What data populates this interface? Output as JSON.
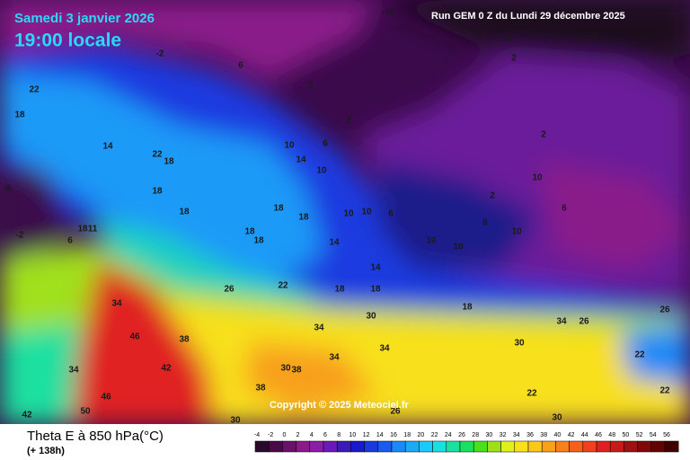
{
  "header": {
    "date": "Samedi 3 janvier 2026",
    "time": "19:00 locale",
    "run": "Run GEM 0 Z du Lundi 29 décembre 2025"
  },
  "copyright": "Copyright © 2025 Meteociel.fr",
  "footer": {
    "parameter": "Theta E à 850 hPa(°C)",
    "lead": "(+ 138h)"
  },
  "scale": {
    "values": [
      -4,
      -2,
      0,
      2,
      4,
      6,
      8,
      10,
      12,
      14,
      16,
      18,
      20,
      22,
      24,
      26,
      28,
      30,
      32,
      34,
      36,
      38,
      40,
      42,
      44,
      46,
      48,
      50,
      52,
      54,
      56
    ],
    "colors": [
      "#2a0a2a",
      "#4a0a4a",
      "#6a126a",
      "#8a1a8a",
      "#8a1ea8",
      "#6a1ab8",
      "#3a1ab8",
      "#1a1acc",
      "#1a3ae0",
      "#1a5af0",
      "#1a8af8",
      "#1aaaf8",
      "#1acaf8",
      "#1ae0e0",
      "#1ae0a0",
      "#1ae060",
      "#4ae01a",
      "#a0e01a",
      "#e0f01a",
      "#f8e01a",
      "#f8c81a",
      "#f8a01a",
      "#f8801a",
      "#f8601a",
      "#f04020",
      "#e02020",
      "#c81a1a",
      "#a01010",
      "#800808",
      "#600404",
      "#400000"
    ]
  },
  "contour_labels": [
    22,
    18,
    14,
    22,
    18,
    18,
    18,
    11,
    18,
    6,
    -2,
    -6,
    -2,
    6,
    2,
    2,
    6,
    10,
    14,
    10,
    18,
    18,
    18,
    18,
    14,
    10,
    10,
    6,
    10,
    10,
    6,
    10,
    2,
    2,
    10,
    6,
    2,
    -2,
    -10,
    -2,
    14,
    18,
    18,
    18,
    22,
    26,
    30,
    34,
    34,
    30,
    34,
    26,
    22,
    30,
    34,
    38,
    42,
    46,
    46,
    50,
    42,
    34,
    34,
    38,
    30,
    38,
    26,
    22,
    30,
    22,
    26
  ]
}
